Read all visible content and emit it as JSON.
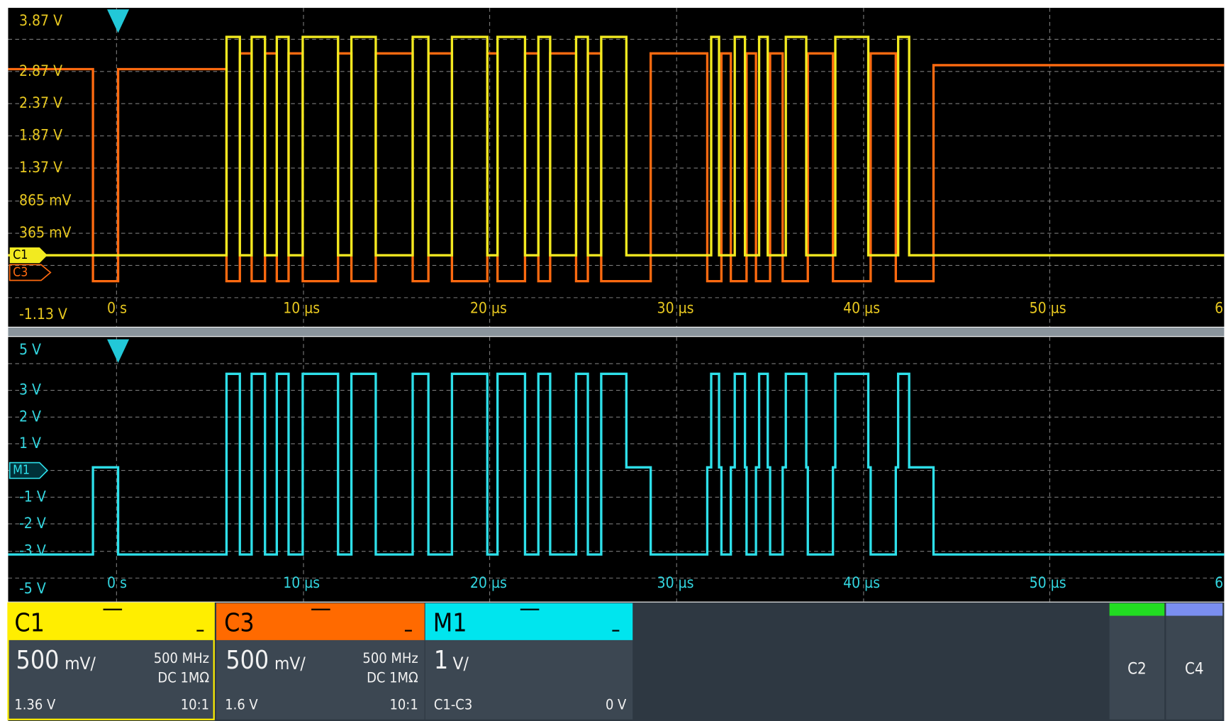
{
  "top_panel": {
    "y_labels": [
      "3.87 V",
      "2.87 V",
      "2.37 V",
      "1.87 V",
      "1.37 V",
      "865 mV",
      "365 mV",
      "-1.13 V"
    ],
    "x_labels": [
      "0 s",
      "10 µs",
      "20 µs",
      "30 µs",
      "40 µs",
      "50 µs",
      "6"
    ],
    "markers": [
      "C1",
      "C3"
    ]
  },
  "bottom_panel": {
    "y_labels": [
      "5 V",
      "3 V",
      "2 V",
      "1 V",
      "-1 V",
      "-2 V",
      "-3 V",
      "-5 V"
    ],
    "x_labels": [
      "0 s",
      "10 µs",
      "20 µs",
      "30 µs",
      "40 µs",
      "50 µs",
      "6"
    ],
    "markers": [
      "M1"
    ]
  },
  "channels": [
    {
      "name": "C1",
      "scale_value": "500",
      "scale_unit": "mV/",
      "bandwidth": "500 MHz",
      "coupling": "DC 1MΩ",
      "offset": "1.36 V",
      "probe": "10:1"
    },
    {
      "name": "C3",
      "scale_value": "500",
      "scale_unit": "mV/",
      "bandwidth": "500 MHz",
      "coupling": "DC 1MΩ",
      "offset": "1.6 V",
      "probe": "10:1"
    },
    {
      "name": "M1",
      "scale_value": "1",
      "scale_unit": "V/",
      "source": "C1-C3",
      "offset": "0 V"
    }
  ],
  "side_buttons": [
    "C2",
    "C4"
  ]
}
